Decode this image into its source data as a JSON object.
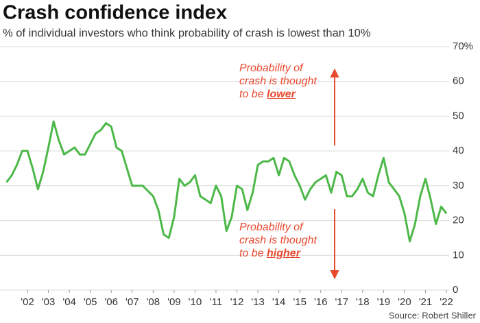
{
  "chart_data": {
    "type": "line",
    "title": "Crash confidence index",
    "subtitle": "% of individual investors who think probability of crash is lowest than 10%",
    "source": "Source: Robert Shiller",
    "annotations": [
      {
        "lines": [
          "Probability of",
          "crash is thought"
        ],
        "prefix": "to be ",
        "emphasis": "lower"
      },
      {
        "lines": [
          "Probability of",
          "crash is thought"
        ],
        "prefix": "to be ",
        "emphasis": "higher"
      }
    ],
    "x": [
      2001,
      2001.25,
      2001.5,
      2001.75,
      2002,
      2002.25,
      2002.5,
      2002.75,
      2003,
      2003.25,
      2003.5,
      2003.75,
      2004,
      2004.25,
      2004.5,
      2004.75,
      2005,
      2005.25,
      2005.5,
      2005.75,
      2006,
      2006.25,
      2006.5,
      2006.75,
      2007,
      2007.25,
      2007.5,
      2007.75,
      2008,
      2008.25,
      2008.5,
      2008.75,
      2009,
      2009.25,
      2009.5,
      2009.75,
      2010,
      2010.25,
      2010.5,
      2010.75,
      2011,
      2011.25,
      2011.5,
      2011.75,
      2012,
      2012.25,
      2012.5,
      2012.75,
      2013,
      2013.25,
      2013.5,
      2013.75,
      2014,
      2014.25,
      2014.5,
      2014.75,
      2015,
      2015.25,
      2015.5,
      2015.75,
      2016,
      2016.25,
      2016.5,
      2016.75,
      2017,
      2017.25,
      2017.5,
      2017.75,
      2018,
      2018.25,
      2018.5,
      2018.75,
      2019,
      2019.25,
      2019.5,
      2019.75,
      2020,
      2020.25,
      2020.5,
      2020.75,
      2021,
      2021.25,
      2021.5,
      2021.75,
      2022
    ],
    "values": [
      31,
      33,
      36,
      40,
      40,
      35,
      29,
      34,
      41,
      48.5,
      43,
      39,
      40,
      41,
      39,
      39,
      42,
      45,
      46,
      48,
      47,
      41,
      40,
      35,
      30,
      30,
      30,
      28.5,
      27,
      23,
      16,
      15,
      21,
      32,
      30,
      31,
      33,
      27,
      26,
      25,
      30,
      27,
      17,
      21,
      30,
      29,
      23,
      28,
      36,
      37,
      37,
      38,
      33,
      38,
      37,
      33,
      30,
      26,
      29,
      31,
      32,
      33,
      28,
      34,
      33,
      27,
      27,
      29,
      32,
      28,
      27,
      33,
      38,
      31,
      29,
      27,
      22,
      14,
      19,
      27,
      32,
      26,
      19,
      24,
      22
    ],
    "color": "#4cb848",
    "xlim": [
      2000.69,
      2022.13
    ],
    "xticks": [
      {
        "value": 2002,
        "label": "'02"
      },
      {
        "value": 2003,
        "label": "'03"
      },
      {
        "value": 2004,
        "label": "'04"
      },
      {
        "value": 2005,
        "label": "'05"
      },
      {
        "value": 2006,
        "label": "'06"
      },
      {
        "value": 2007,
        "label": "'07"
      },
      {
        "value": 2008,
        "label": "'08"
      },
      {
        "value": 2009,
        "label": "'09"
      },
      {
        "value": 2010,
        "label": "'10"
      },
      {
        "value": 2011,
        "label": "'11"
      },
      {
        "value": 2012,
        "label": "'12"
      },
      {
        "value": 2013,
        "label": "'13"
      },
      {
        "value": 2014,
        "label": "'14"
      },
      {
        "value": 2015,
        "label": "'15"
      },
      {
        "value": 2016,
        "label": "'16"
      },
      {
        "value": 2017,
        "label": "'17"
      },
      {
        "value": 2018,
        "label": "'18"
      },
      {
        "value": 2019,
        "label": "'19"
      },
      {
        "value": 2020,
        "label": "'20"
      },
      {
        "value": 2021,
        "label": "'21"
      },
      {
        "value": 2022,
        "label": "'22"
      }
    ],
    "ylim": [
      0,
      70
    ],
    "yticks": [
      0,
      10,
      20,
      30,
      40,
      50,
      60,
      {
        "value": 70,
        "label": "70%"
      }
    ],
    "grid": true
  }
}
